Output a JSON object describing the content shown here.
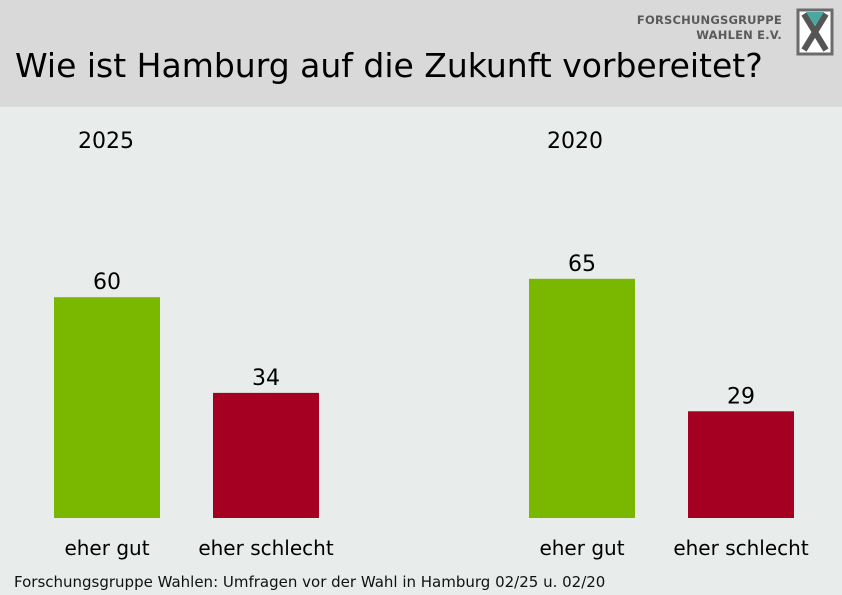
{
  "header": {
    "title": "Wie ist Hamburg auf die Zukunft vorbereitet?",
    "logo": {
      "line1": "FORSCHUNGSGRUPPE",
      "line2": "WAHLEN E.V.",
      "icon": "fgw-logo-icon"
    }
  },
  "footer": {
    "source": "Forschungsgruppe Wahlen: Umfragen vor der Wahl in Hamburg 02/25 u. 02/20"
  },
  "colors": {
    "good": "#7ab800",
    "bad": "#a50021",
    "background": "#e8ecea",
    "header_bg": "#d9d9d9"
  },
  "chart_data": [
    {
      "type": "bar",
      "title": "2025",
      "categories": [
        "eher gut",
        "eher schlecht"
      ],
      "values": [
        60,
        34
      ],
      "data_labels": [
        "60",
        "34"
      ],
      "colors": [
        "#7ab800",
        "#a50021"
      ],
      "ylim": [
        0,
        100
      ],
      "grid": false
    },
    {
      "type": "bar",
      "title": "2020",
      "categories": [
        "eher gut",
        "eher schlecht"
      ],
      "values": [
        65,
        29
      ],
      "data_labels": [
        "65",
        "29"
      ],
      "colors": [
        "#7ab800",
        "#a50021"
      ],
      "ylim": [
        0,
        100
      ],
      "grid": false
    }
  ]
}
